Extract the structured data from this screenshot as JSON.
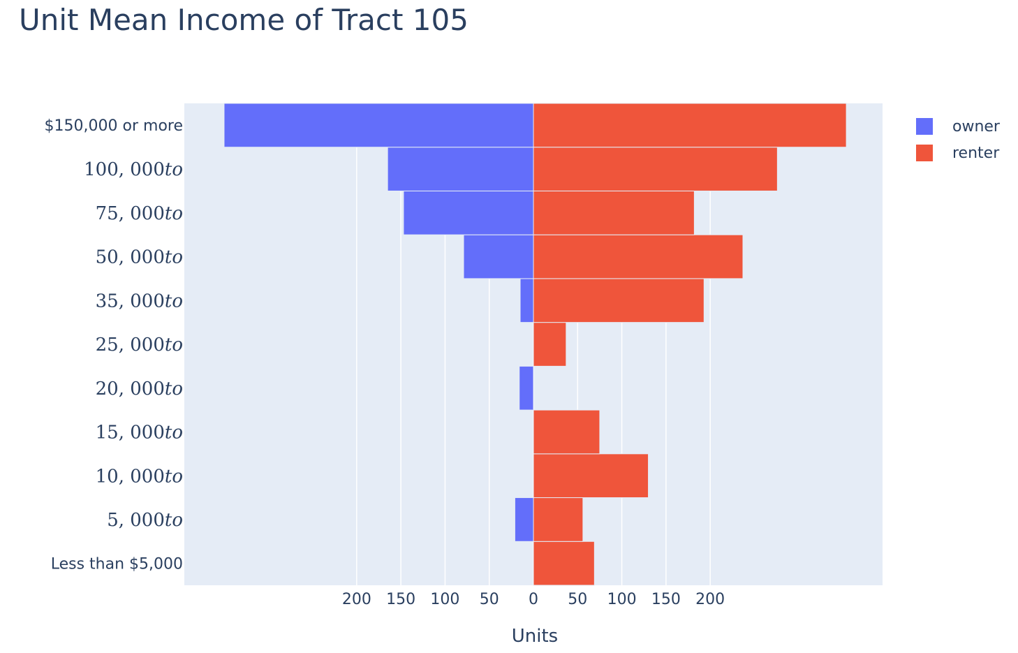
{
  "chart_data": {
    "type": "bar",
    "orientation": "horizontal",
    "title": "Unit Mean Income of Tract 105",
    "xlabel": "Units",
    "ylabel": "",
    "xlim": [
      -395,
      395
    ],
    "x_tick_values": [
      -200,
      -150,
      -100,
      -50,
      0,
      50,
      100,
      150,
      200
    ],
    "x_tick_labels": [
      "200",
      "150",
      "100",
      "50",
      "0",
      "50",
      "100",
      "150",
      "200"
    ],
    "categories": [
      "Less than $5,000",
      "5,000to",
      "10,000to",
      "15,000to",
      "20,000to",
      "25,000to",
      "35,000to",
      "50,000to",
      "75,000to",
      "100,000to",
      "$150,000 or more"
    ],
    "category_display": [
      {
        "num": "",
        "suffix": "",
        "plain": "Less than $5,000"
      },
      {
        "num": "5, 000",
        "suffix": "to",
        "plain": ""
      },
      {
        "num": "10, 000",
        "suffix": "to",
        "plain": ""
      },
      {
        "num": "15, 000",
        "suffix": "to",
        "plain": ""
      },
      {
        "num": "20, 000",
        "suffix": "to",
        "plain": ""
      },
      {
        "num": "25, 000",
        "suffix": "to",
        "plain": ""
      },
      {
        "num": "35, 000",
        "suffix": "to",
        "plain": ""
      },
      {
        "num": "50, 000",
        "suffix": "to",
        "plain": ""
      },
      {
        "num": "75, 000",
        "suffix": "to",
        "plain": ""
      },
      {
        "num": "100, 000",
        "suffix": "to",
        "plain": ""
      },
      {
        "num": "",
        "suffix": "",
        "plain": "$150,000 or more"
      }
    ],
    "series": [
      {
        "name": "owner",
        "color": "#636efa",
        "values": [
          0,
          -21,
          0,
          0,
          -16,
          0,
          -15,
          -79,
          -147,
          -165,
          -350
        ]
      },
      {
        "name": "renter",
        "color": "#ef553b",
        "values": [
          69,
          56,
          130,
          75,
          0,
          37,
          193,
          237,
          182,
          276,
          354
        ]
      }
    ],
    "grid": true,
    "legend_position": "top-right",
    "plot_background": "#e5ecf6"
  }
}
